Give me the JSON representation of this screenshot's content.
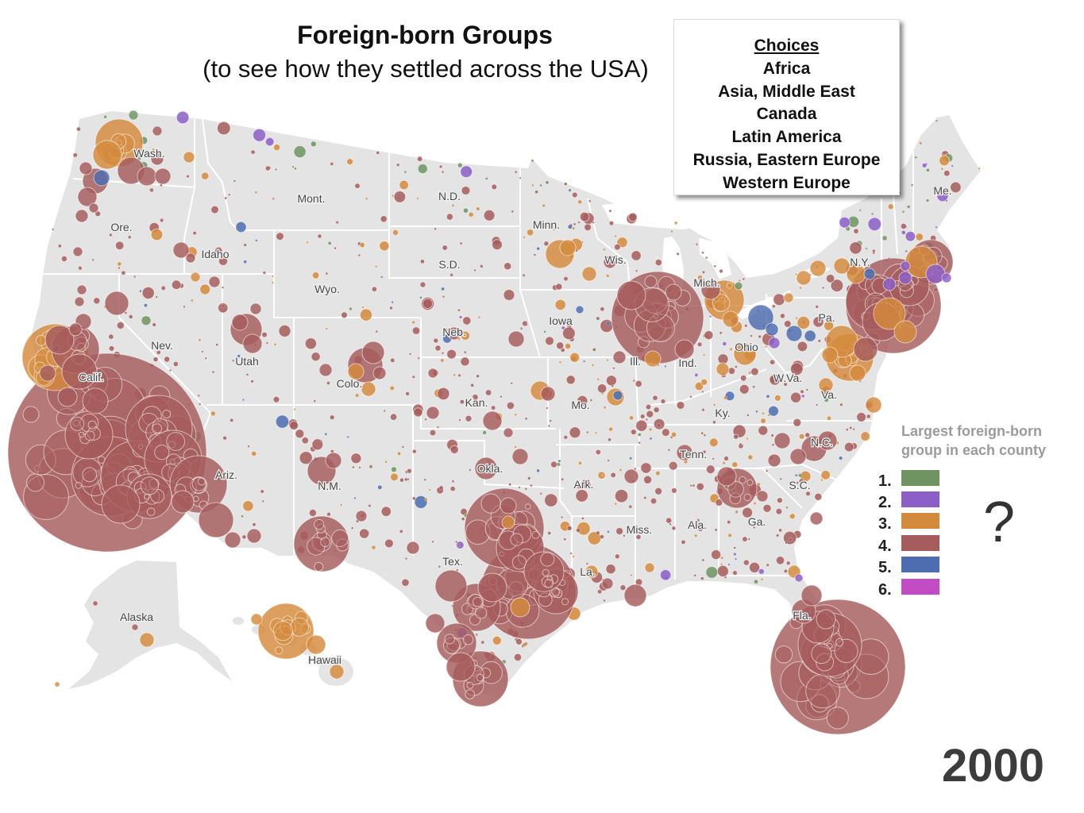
{
  "title": "Foreign-born Groups",
  "subtitle": "(to see how they settled across the USA)",
  "choices": {
    "heading": "Choices",
    "items": [
      "Africa",
      "Asia, Middle East",
      "Canada",
      "Latin America",
      "Russia, Eastern Europe",
      "Western Europe"
    ]
  },
  "legend": {
    "title_lines": [
      "Largest foreign-born",
      "group in each county"
    ],
    "items": [
      {
        "number": "1.",
        "color": "#6f9461"
      },
      {
        "number": "2.",
        "color": "#8c5ec8"
      },
      {
        "number": "3.",
        "color": "#d48a3c"
      },
      {
        "number": "4.",
        "color": "#a65c5c"
      },
      {
        "number": "5.",
        "color": "#4d6db0"
      },
      {
        "number": "6.",
        "color": "#c24cc4"
      }
    ]
  },
  "question_mark": "?",
  "year": "2000",
  "map": {
    "land_color": "#e4e4e4",
    "state_labels": [
      "Wash.",
      "Mont.",
      "N.D.",
      "Minn.",
      "Ore.",
      "Idaho",
      "Wyo.",
      "S.D.",
      "Wis.",
      "Mich.",
      "N.Y.",
      "Me.",
      "Nev.",
      "Utah",
      "Colo.",
      "Neb.",
      "Iowa",
      "Ill.",
      "Ind.",
      "Ohio",
      "Pa.",
      "Calif.",
      "Kan.",
      "Mo.",
      "W.Va.",
      "Va.",
      "Ky.",
      "N.C.",
      "Tenn.",
      "S.C.",
      "Ariz.",
      "N.M.",
      "Okla.",
      "Ark.",
      "Miss.",
      "Ala.",
      "Ga.",
      "Tex.",
      "La.",
      "Fla.",
      "Alaska",
      "Hawaii"
    ]
  }
}
